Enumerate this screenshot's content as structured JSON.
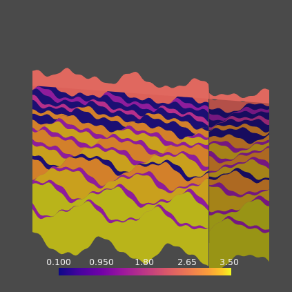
{
  "viewport": {
    "background": "#4a4a4a",
    "object": "layered-block-volume"
  },
  "colorbar": {
    "colormap": "plasma",
    "ticks": [
      "0.100",
      "0.950",
      "1.80",
      "2.65",
      "3.50"
    ],
    "min": 0.1,
    "max": 3.5
  },
  "palette": {
    "top_surface": "#dc6159",
    "dark_band": "#1c0f73",
    "purple_band": "#8f1c9c",
    "magenta_band": "#b72f8b",
    "orange_band": "#d3802a",
    "gold_band": "#c9a01d",
    "yellow_band": "#b9b41a"
  }
}
